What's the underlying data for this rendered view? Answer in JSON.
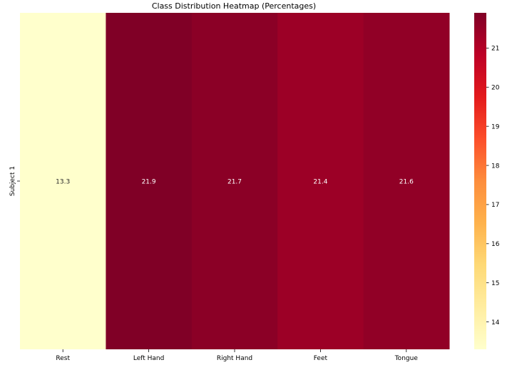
{
  "chart_data": {
    "type": "heatmap",
    "title": "Class Distribution Heatmap (Percentages)",
    "xlabel": "",
    "ylabel": "",
    "x_categories": [
      "Rest",
      "Left Hand",
      "Right Hand",
      "Feet",
      "Tongue"
    ],
    "y_categories": [
      "Subject 1"
    ],
    "values": [
      [
        13.3,
        21.9,
        21.7,
        21.4,
        21.6
      ]
    ],
    "annotations": [
      "13.3",
      "21.9",
      "21.7",
      "21.4",
      "21.6"
    ],
    "colormap": "YlOrRd",
    "color_stops": [
      "#ffffcc",
      "#ffeda0",
      "#fed976",
      "#feb24c",
      "#fd8d3c",
      "#fc4e2a",
      "#e31a1c",
      "#bd0026",
      "#800026"
    ],
    "colorbar": {
      "range": [
        13.3,
        21.9
      ],
      "ticks": [
        "14",
        "15",
        "16",
        "17",
        "18",
        "19",
        "20",
        "21"
      ]
    },
    "grid": false,
    "legend": "colorbar-right"
  }
}
